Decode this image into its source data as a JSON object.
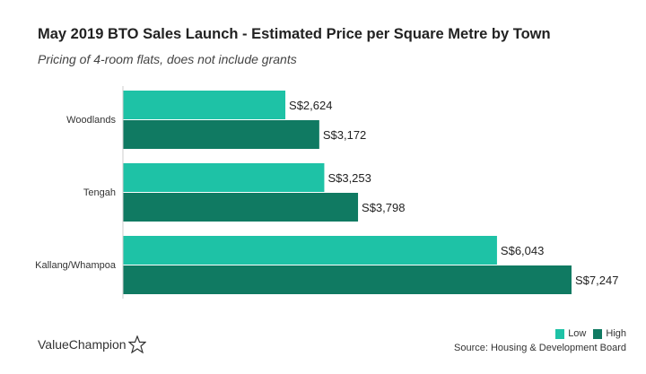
{
  "chart_data": {
    "type": "bar",
    "orientation": "horizontal",
    "title": "May 2019 BTO Sales Launch - Estimated Price per Square Metre by Town",
    "subtitle": "Pricing of 4-room flats, does not include grants",
    "categories": [
      "Woodlands",
      "Tengah",
      "Kallang/Whampoa"
    ],
    "series": [
      {
        "name": "Low",
        "color": "#1ec2a6",
        "values": [
          2624,
          3253,
          6043
        ],
        "labels": [
          "S$2,624",
          "S$3,253",
          "S$6,043"
        ]
      },
      {
        "name": "High",
        "color": "#107a62",
        "values": [
          3172,
          3798,
          7247
        ],
        "labels": [
          "S$3,172",
          "S$3,798",
          "S$7,247"
        ]
      }
    ],
    "xlim": [
      0,
      7247
    ],
    "grid": false,
    "legend": "bottom-right",
    "source": "Source: Housing & Development Board"
  },
  "brand": "ValueChampion"
}
